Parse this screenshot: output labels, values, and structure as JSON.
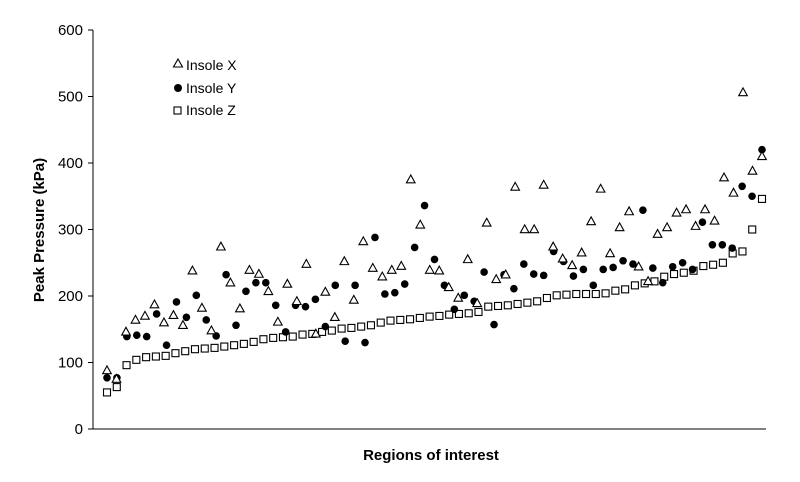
{
  "chart_data": {
    "type": "scatter",
    "title": "",
    "xlabel": "Regions of interest",
    "ylabel": "Peak Pressure (kPa)",
    "ylim": [
      0,
      600
    ],
    "yticks": [
      0,
      100,
      200,
      300,
      400,
      500,
      600
    ],
    "grid": false,
    "legend_position": "top-left",
    "x": [
      1,
      2,
      3,
      4,
      5,
      6,
      7,
      8,
      9,
      10,
      11,
      12,
      13,
      14,
      15,
      16,
      17,
      18,
      19,
      20,
      21,
      22,
      23,
      24,
      25,
      26,
      27,
      28,
      29,
      30,
      31,
      32,
      33,
      34,
      35,
      36,
      37,
      38,
      39,
      40,
      41,
      42,
      43,
      44,
      45,
      46,
      47,
      48,
      48,
      49,
      50,
      51,
      52,
      53,
      54,
      55,
      56,
      57,
      58,
      59,
      60,
      61,
      62,
      63,
      64,
      65,
      66,
      67,
      68,
      69,
      70,
      71,
      72,
      73,
      74,
      75,
      76,
      77,
      78,
      79,
      80,
      81,
      82
    ],
    "series": [
      {
        "name": "Insole X",
        "marker": "triangle-open",
        "values": [
          88,
          75,
          146,
          164,
          170,
          187,
          160,
          171,
          156,
          238,
          182,
          148,
          274,
          220,
          181,
          239,
          233,
          207,
          161,
          218,
          192,
          248,
          143,
          206,
          168,
          252,
          194,
          282,
          242,
          229,
          239,
          245,
          375,
          307,
          239,
          238,
          213,
          197,
          255,
          189,
          310,
          225,
          232,
          364,
          300,
          300,
          367,
          274,
          256,
          246,
          265,
          312,
          361,
          264,
          303,
          327,
          244,
          222,
          293,
          303,
          325,
          330,
          305,
          330,
          313,
          378,
          355,
          506,
          388,
          410
        ],
        "x": [
          1,
          2,
          3,
          4,
          5,
          6,
          7,
          8,
          9,
          10,
          11,
          12,
          13,
          14,
          15,
          16,
          17,
          18,
          19,
          20,
          21,
          22,
          23,
          24,
          25,
          26,
          27,
          28,
          29,
          30,
          31,
          32,
          33,
          34,
          35,
          36,
          37,
          38,
          39,
          40,
          41,
          42,
          43,
          44,
          45,
          46,
          47,
          48,
          49,
          50,
          51,
          52,
          53,
          54,
          55,
          56,
          57,
          58,
          59,
          60,
          61,
          62,
          63,
          64,
          65,
          66,
          67,
          68,
          69,
          70
        ]
      },
      {
        "name": "Insole Y",
        "marker": "circle-filled",
        "values": [
          77,
          77,
          139,
          141,
          139,
          173,
          126,
          191,
          168,
          201,
          164,
          140,
          232,
          156,
          207,
          220,
          220,
          186,
          146,
          186,
          184,
          195,
          154,
          216,
          132,
          216,
          130,
          288,
          203,
          205,
          218,
          273,
          336,
          255,
          216,
          180,
          201,
          192,
          236,
          157,
          232,
          211,
          248,
          233,
          231,
          267,
          252,
          230,
          240,
          216,
          240,
          243,
          253,
          248,
          329,
          242,
          220,
          244,
          250,
          240,
          311,
          277,
          277,
          272,
          365,
          350,
          420
        ],
        "x": [
          1,
          2,
          3,
          4,
          5,
          6,
          7,
          8,
          9,
          10,
          11,
          12,
          13,
          14,
          15,
          16,
          17,
          18,
          19,
          20,
          21,
          22,
          23,
          24,
          25,
          26,
          27,
          28,
          29,
          30,
          31,
          32,
          33,
          34,
          35,
          36,
          37,
          38,
          39,
          40,
          41,
          42,
          43,
          44,
          45,
          46,
          47,
          48,
          49,
          50,
          51,
          52,
          53,
          54,
          55,
          56,
          57,
          58,
          59,
          60,
          61,
          62,
          63,
          64,
          65,
          66,
          67
        ]
      },
      {
        "name": "Insole Z",
        "marker": "square-open",
        "values": [
          55,
          63,
          96,
          104,
          108,
          109,
          110,
          114,
          117,
          120,
          121,
          122,
          124,
          126,
          128,
          131,
          135,
          137,
          138,
          139,
          142,
          143,
          146,
          148,
          151,
          152,
          154,
          156,
          160,
          163,
          164,
          165,
          167,
          169,
          170,
          172,
          173,
          174,
          176,
          184,
          185,
          186,
          188,
          190,
          192,
          197,
          201,
          202,
          203,
          203,
          203,
          204,
          208,
          210,
          216,
          219,
          222,
          229,
          233,
          235,
          238,
          245,
          247,
          250,
          264,
          267,
          300,
          346
        ],
        "x": [
          1,
          2,
          3,
          4,
          5,
          6,
          7,
          8,
          9,
          10,
          11,
          12,
          13,
          14,
          15,
          16,
          17,
          18,
          19,
          20,
          21,
          22,
          23,
          24,
          25,
          26,
          27,
          28,
          29,
          30,
          31,
          32,
          33,
          34,
          35,
          36,
          37,
          38,
          39,
          40,
          41,
          42,
          43,
          44,
          45,
          46,
          47,
          48,
          49,
          50,
          51,
          52,
          53,
          54,
          55,
          56,
          57,
          58,
          59,
          60,
          61,
          62,
          63,
          64,
          65,
          66,
          67,
          68
        ]
      }
    ]
  }
}
